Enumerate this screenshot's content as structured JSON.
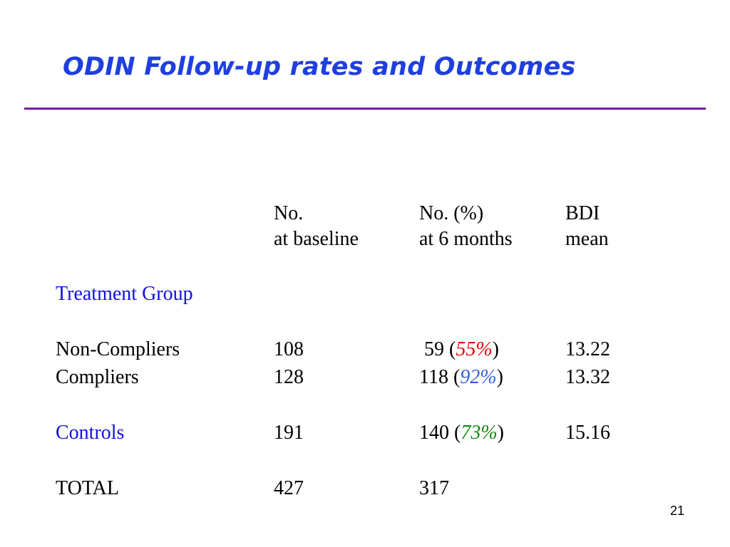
{
  "title": "ODIN Follow-up rates and Outcomes",
  "colors": {
    "title": "#1f3fe0",
    "rule": "#7a1a99",
    "group_label": "#1111dd",
    "pct_red": "#e00000",
    "pct_blue": "#2f5fd6",
    "pct_green": "#0a8a0a"
  },
  "headers": {
    "baseline": [
      "No.",
      "at baseline"
    ],
    "six_months": [
      "No. (%)",
      "at 6 months"
    ],
    "bdi": [
      "BDI",
      "mean"
    ]
  },
  "treatment_group_label": "Treatment Group",
  "rows": {
    "non_compliers": {
      "label": "Non-Compliers",
      "baseline": "108",
      "six_months_n": " 59 (",
      "six_months_pct": "55%",
      "close": ")",
      "bdi": "13.22"
    },
    "compliers": {
      "label": "Compliers",
      "baseline": "128",
      "six_months_n": "118 (",
      "six_months_pct": "92%",
      "close": ")",
      "bdi": "13.32"
    },
    "controls": {
      "label": "Controls",
      "baseline": "191",
      "six_months_n": "140 (",
      "six_months_pct": "73%",
      "close": ")",
      "bdi": "15.16"
    },
    "total": {
      "label": "TOTAL",
      "baseline": "427",
      "six_months": "317"
    }
  },
  "page_number": "21"
}
